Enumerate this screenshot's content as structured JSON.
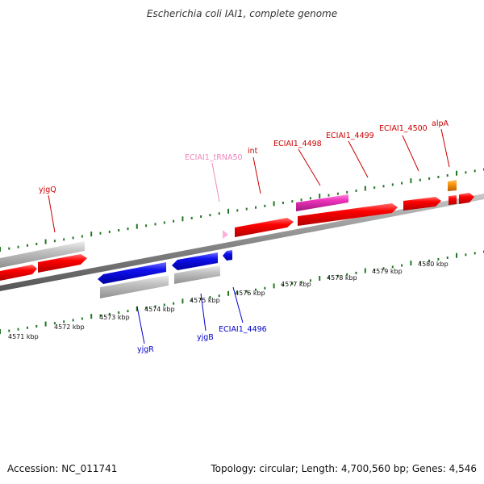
{
  "title": "Escherichia coli IAI1, complete genome",
  "footer": {
    "accession": "Accession: NC_011741",
    "topology": "Topology: circular; Length: 4,700,560 bp; Genes: 4,546"
  },
  "colors": {
    "forward": "#ff0000",
    "reverse": "#1111ee",
    "gray": "#bdbdbd",
    "trna": "#ee44bb",
    "orange": "#ff9911",
    "tick": "#227722"
  },
  "kbp_labels": [
    "4571 kbp",
    "4572 kbp",
    "4573 kbp",
    "4574 kbp",
    "4575 kbp",
    "4576 kbp",
    "4577 kbp",
    "4578 kbp",
    "4579 kbp",
    "4580 kbp"
  ],
  "gene_labels": [
    {
      "text": "yjgQ",
      "color": "red"
    },
    {
      "text": "ECIAI1_tRNA50",
      "color": "pink"
    },
    {
      "text": "int",
      "color": "red"
    },
    {
      "text": "ECIAI1_4498",
      "color": "red"
    },
    {
      "text": "ECIAI1_4499",
      "color": "red"
    },
    {
      "text": "ECIAI1_4500",
      "color": "red"
    },
    {
      "text": "alpA",
      "color": "red"
    },
    {
      "text": "yjgR",
      "color": "blue"
    },
    {
      "text": "yjgB",
      "color": "blue"
    },
    {
      "text": "ECIAI1_4496",
      "color": "blue"
    }
  ]
}
